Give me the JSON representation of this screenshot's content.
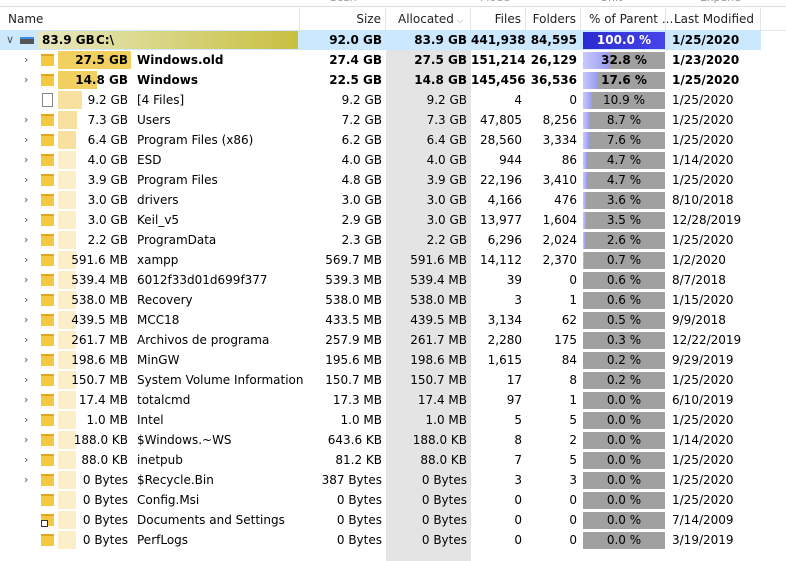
{
  "toolbar": [
    "Scan",
    "Mode",
    "Unit",
    "Expand"
  ],
  "columns": {
    "name": "Name",
    "size": "Size",
    "allocated": "Allocated",
    "files": "Files",
    "folders": "Folders",
    "percent": "% of Parent ...",
    "modified": "Last Modified"
  },
  "root": {
    "name": "C:\\",
    "size": "92.0 GB",
    "allocated": "83.9 GB",
    "files": "441,938",
    "folders": "84,595",
    "percent": "100.0 %",
    "modified": "1/25/2020"
  },
  "rows": [
    {
      "name": "Windows.old",
      "size": "27.4 GB",
      "allocated": "27.5 GB",
      "files": "151,214",
      "folders": "26,129",
      "percent": "32.8 %",
      "modified": "1/23/2020",
      "bold": true,
      "icon": "folder",
      "expand": true
    },
    {
      "name": "Windows",
      "size": "22.5 GB",
      "allocated": "14.8 GB",
      "files": "145,456",
      "folders": "36,536",
      "percent": "17.6 %",
      "modified": "1/25/2020",
      "bold": true,
      "icon": "folder",
      "expand": true
    },
    {
      "name": "[4 Files]",
      "size": "9.2 GB",
      "allocated": "9.2 GB",
      "files": "4",
      "folders": "0",
      "percent": "10.9 %",
      "modified": "1/25/2020",
      "icon": "file",
      "expand": false
    },
    {
      "name": "Users",
      "size": "7.2 GB",
      "allocated": "7.3 GB",
      "files": "47,805",
      "folders": "8,256",
      "percent": "8.7 %",
      "modified": "1/25/2020",
      "icon": "folder",
      "expand": true
    },
    {
      "name": "Program Files (x86)",
      "size": "6.2 GB",
      "allocated": "6.4 GB",
      "files": "28,560",
      "folders": "3,334",
      "percent": "7.6 %",
      "modified": "1/25/2020",
      "icon": "folder",
      "expand": true
    },
    {
      "name": "ESD",
      "size": "4.0 GB",
      "allocated": "4.0 GB",
      "files": "944",
      "folders": "86",
      "percent": "4.7 %",
      "modified": "1/14/2020",
      "icon": "folder",
      "expand": true
    },
    {
      "name": "Program Files",
      "size": "4.8 GB",
      "allocated": "3.9 GB",
      "files": "22,196",
      "folders": "3,410",
      "percent": "4.7 %",
      "modified": "1/25/2020",
      "icon": "folder",
      "expand": true
    },
    {
      "name": "drivers",
      "size": "3.0 GB",
      "allocated": "3.0 GB",
      "files": "4,166",
      "folders": "476",
      "percent": "3.6 %",
      "modified": "8/10/2018",
      "icon": "folder",
      "expand": true
    },
    {
      "name": "Keil_v5",
      "size": "2.9 GB",
      "allocated": "3.0 GB",
      "files": "13,977",
      "folders": "1,604",
      "percent": "3.5 %",
      "modified": "12/28/2019",
      "icon": "folder",
      "expand": true
    },
    {
      "name": "ProgramData",
      "size": "2.3 GB",
      "allocated": "2.2 GB",
      "files": "6,296",
      "folders": "2,024",
      "percent": "2.6 %",
      "modified": "1/25/2020",
      "icon": "folder",
      "expand": true
    },
    {
      "name": "xampp",
      "size": "569.7 MB",
      "allocated": "591.6 MB",
      "files": "14,112",
      "folders": "2,370",
      "percent": "0.7 %",
      "modified": "1/2/2020",
      "icon": "folder",
      "expand": true
    },
    {
      "name": "6012f33d01d699f377",
      "size": "539.3 MB",
      "allocated": "539.4 MB",
      "files": "39",
      "folders": "0",
      "percent": "0.6 %",
      "modified": "8/7/2018",
      "icon": "folder",
      "expand": true
    },
    {
      "name": "Recovery",
      "size": "538.0 MB",
      "allocated": "538.0 MB",
      "files": "3",
      "folders": "1",
      "percent": "0.6 %",
      "modified": "1/15/2020",
      "icon": "folder",
      "expand": true
    },
    {
      "name": "MCC18",
      "size": "433.5 MB",
      "allocated": "439.5 MB",
      "files": "3,134",
      "folders": "62",
      "percent": "0.5 %",
      "modified": "9/9/2018",
      "icon": "folder",
      "expand": true
    },
    {
      "name": "Archivos de programa",
      "size": "257.9 MB",
      "allocated": "261.7 MB",
      "files": "2,280",
      "folders": "175",
      "percent": "0.3 %",
      "modified": "12/22/2019",
      "icon": "folder",
      "expand": true
    },
    {
      "name": "MinGW",
      "size": "195.6 MB",
      "allocated": "198.6 MB",
      "files": "1,615",
      "folders": "84",
      "percent": "0.2 %",
      "modified": "9/29/2019",
      "icon": "folder",
      "expand": true
    },
    {
      "name": "System Volume Information",
      "size": "150.7 MB",
      "allocated": "150.7 MB",
      "files": "17",
      "folders": "8",
      "percent": "0.2 %",
      "modified": "1/25/2020",
      "icon": "folder",
      "expand": true
    },
    {
      "name": "totalcmd",
      "size": "17.3 MB",
      "allocated": "17.4 MB",
      "files": "97",
      "folders": "1",
      "percent": "0.0 %",
      "modified": "6/10/2019",
      "icon": "folder",
      "expand": true
    },
    {
      "name": "Intel",
      "size": "1.0 MB",
      "allocated": "1.0 MB",
      "files": "5",
      "folders": "5",
      "percent": "0.0 %",
      "modified": "1/25/2020",
      "icon": "folder",
      "expand": true
    },
    {
      "name": "$Windows.~WS",
      "size": "643.6 KB",
      "allocated": "188.0 KB",
      "files": "8",
      "folders": "2",
      "percent": "0.0 %",
      "modified": "1/14/2020",
      "icon": "folder",
      "expand": true
    },
    {
      "name": "inetpub",
      "size": "81.2 KB",
      "allocated": "88.0 KB",
      "files": "7",
      "folders": "5",
      "percent": "0.0 %",
      "modified": "1/25/2020",
      "icon": "folder",
      "expand": true
    },
    {
      "name": "$Recycle.Bin",
      "size": "387 Bytes",
      "allocated": "0 Bytes",
      "files": "3",
      "folders": "3",
      "percent": "0.0 %",
      "modified": "1/25/2020",
      "icon": "folder",
      "expand": true
    },
    {
      "name": "Config.Msi",
      "size": "0 Bytes",
      "allocated": "0 Bytes",
      "files": "0",
      "folders": "0",
      "percent": "0.0 %",
      "modified": "1/25/2020",
      "icon": "folder",
      "expand": false
    },
    {
      "name": "Documents and Settings",
      "size": "0 Bytes",
      "allocated": "0 Bytes",
      "files": "0",
      "folders": "0",
      "percent": "0.0 %",
      "modified": "7/14/2009",
      "icon": "link",
      "expand": false
    },
    {
      "name": "PerfLogs",
      "size": "0 Bytes",
      "allocated": "0 Bytes",
      "files": "0",
      "folders": "0",
      "percent": "0.0 %",
      "modified": "3/19/2019",
      "icon": "folder",
      "expand": false
    }
  ]
}
